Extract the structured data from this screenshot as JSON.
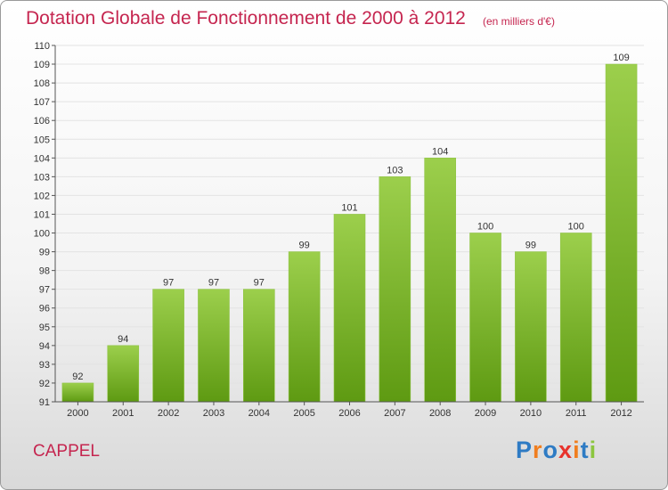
{
  "header": {
    "title": "Dotation Globale de Fonctionnement de 2000 à 2012",
    "subtitle": "(en milliers d'€)"
  },
  "footer": {
    "commune": "CAPPEL",
    "logo_text": "Proxiti"
  },
  "colors": {
    "accent": "#c5254f",
    "bar_top": "#9ccf4c",
    "bar_bottom": "#5e9a12",
    "grid": "#e3e3e3",
    "axis": "#555555",
    "logo_letters": [
      "#2e7bc4",
      "#f07e1f",
      "#2e7bc4",
      "#e8322c",
      "#f07e1f",
      "#2e7bc4",
      "#8cc63f"
    ]
  },
  "chart_data": {
    "type": "bar",
    "categories": [
      "2000",
      "2001",
      "2002",
      "2003",
      "2004",
      "2005",
      "2006",
      "2007",
      "2008",
      "2009",
      "2010",
      "2011",
      "2012"
    ],
    "values": [
      92,
      94,
      97,
      97,
      97,
      99,
      101,
      103,
      104,
      100,
      99,
      100,
      109
    ],
    "ylim": [
      91,
      110
    ],
    "yticks": [
      91,
      92,
      93,
      94,
      95,
      96,
      97,
      98,
      99,
      100,
      101,
      102,
      103,
      104,
      105,
      106,
      107,
      108,
      109,
      110
    ],
    "grid": true,
    "data_labels": true
  }
}
